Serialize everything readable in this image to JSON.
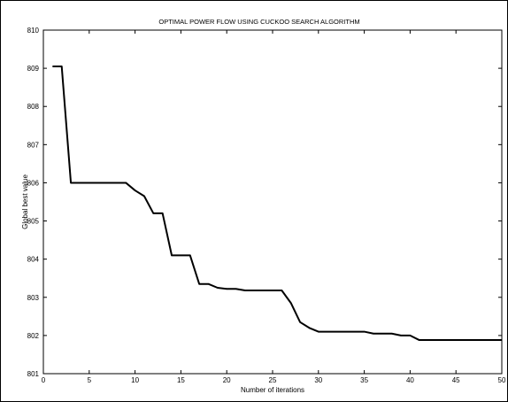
{
  "chart_data": {
    "type": "line",
    "title": "OPTIMAL POWER FLOW USING CUCKOO SEARCH ALGORITHM",
    "xlabel": "Number of iterations",
    "ylabel": "Global best value",
    "xlim": [
      0,
      50
    ],
    "ylim": [
      801,
      810
    ],
    "xticks": [
      0,
      5,
      10,
      15,
      20,
      25,
      30,
      35,
      40,
      45,
      50
    ],
    "yticks": [
      801,
      802,
      803,
      804,
      805,
      806,
      807,
      808,
      809,
      810
    ],
    "grid": false,
    "series": [
      {
        "color": "#000000",
        "x": [
          1,
          2,
          3,
          4,
          5,
          6,
          7,
          8,
          9,
          10,
          11,
          12,
          13,
          14,
          15,
          16,
          17,
          18,
          19,
          20,
          21,
          22,
          23,
          24,
          25,
          26,
          27,
          28,
          29,
          30,
          31,
          32,
          33,
          34,
          35,
          36,
          37,
          38,
          39,
          40,
          41,
          42,
          43,
          44,
          45,
          46,
          47,
          48,
          49,
          50
        ],
        "values": [
          809.05,
          809.05,
          806.0,
          806.0,
          806.0,
          806.0,
          806.0,
          806.0,
          806.0,
          805.8,
          805.65,
          805.2,
          805.2,
          804.1,
          804.1,
          804.1,
          803.35,
          803.35,
          803.25,
          803.22,
          803.22,
          803.18,
          803.18,
          803.18,
          803.18,
          803.18,
          802.85,
          802.35,
          802.2,
          802.1,
          802.1,
          802.1,
          802.1,
          802.1,
          802.1,
          802.05,
          802.05,
          802.05,
          802.0,
          802.0,
          801.88,
          801.88,
          801.88,
          801.88,
          801.88,
          801.88,
          801.88,
          801.88,
          801.88,
          801.88
        ]
      }
    ]
  }
}
